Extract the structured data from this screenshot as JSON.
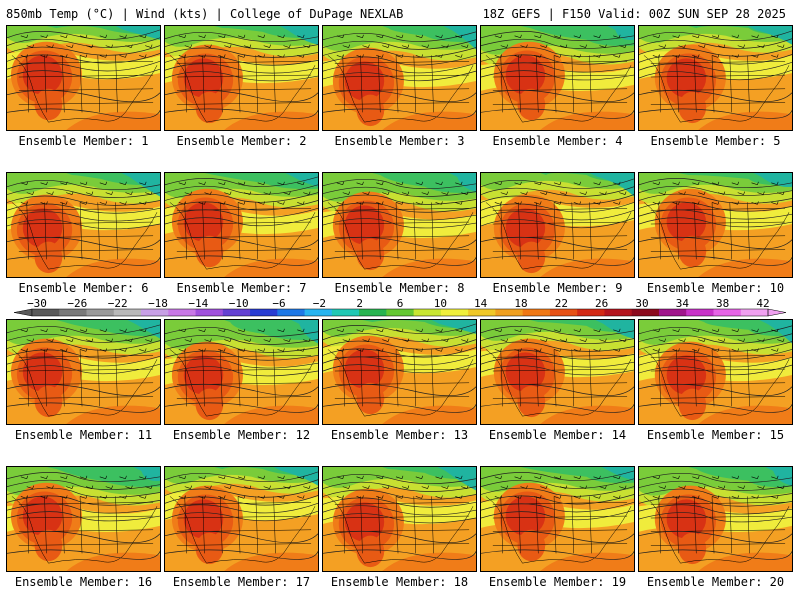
{
  "header": {
    "left_title": "850mb Temp (°C) | Wind (kts) | College of DuPage NEXLAB",
    "right_title": "18Z GEFS | F150 Valid: 00Z SUN SEP 28 2025"
  },
  "members": [
    {
      "label": "Ensemble Member: 1",
      "variant": 0
    },
    {
      "label": "Ensemble Member: 2",
      "variant": 1
    },
    {
      "label": "Ensemble Member: 3",
      "variant": 2
    },
    {
      "label": "Ensemble Member: 4",
      "variant": 3
    },
    {
      "label": "Ensemble Member: 5",
      "variant": 4
    },
    {
      "label": "Ensemble Member: 6",
      "variant": 5
    },
    {
      "label": "Ensemble Member: 7",
      "variant": 6
    },
    {
      "label": "Ensemble Member: 8",
      "variant": 7
    },
    {
      "label": "Ensemble Member: 9",
      "variant": 8
    },
    {
      "label": "Ensemble Member: 10",
      "variant": 9
    },
    {
      "label": "Ensemble Member: 11",
      "variant": 10
    },
    {
      "label": "Ensemble Member: 12",
      "variant": 11
    },
    {
      "label": "Ensemble Member: 13",
      "variant": 12
    },
    {
      "label": "Ensemble Member: 14",
      "variant": 13
    },
    {
      "label": "Ensemble Member: 15",
      "variant": 14
    },
    {
      "label": "Ensemble Member: 16",
      "variant": 15
    },
    {
      "label": "Ensemble Member: 17",
      "variant": 16
    },
    {
      "label": "Ensemble Member: 18",
      "variant": 17
    },
    {
      "label": "Ensemble Member: 19",
      "variant": 18
    },
    {
      "label": "Ensemble Member: 20",
      "variant": 19
    }
  ],
  "colorbar": {
    "labels": [
      "−30",
      "−26",
      "−22",
      "−18",
      "−14",
      "−10",
      "−6",
      "−2",
      "2",
      "6",
      "10",
      "14",
      "18",
      "22",
      "26",
      "30",
      "34",
      "38",
      "42"
    ],
    "colors": [
      "#5a5a5a",
      "#7a7a7a",
      "#9a9a9a",
      "#b9b9b9",
      "#c8a0e6",
      "#c878e6",
      "#a050dc",
      "#6440d2",
      "#283cd2",
      "#1e78e6",
      "#28b4f0",
      "#20c8b4",
      "#28b450",
      "#64c832",
      "#c8e632",
      "#f0f03c",
      "#f0c828",
      "#f0a020",
      "#f07814",
      "#e65014",
      "#d22814",
      "#b4141e",
      "#8c0a1e",
      "#a0148c",
      "#c832c8",
      "#e664e6",
      "#f0a0f0"
    ]
  },
  "legend": {
    "palette": [
      "#20b4a0",
      "#3cc060",
      "#7acc3a",
      "#c8e032",
      "#f0ec3c",
      "#f6c62e",
      "#f4a023",
      "#f07c18",
      "#e85a14",
      "#d83214"
    ]
  }
}
